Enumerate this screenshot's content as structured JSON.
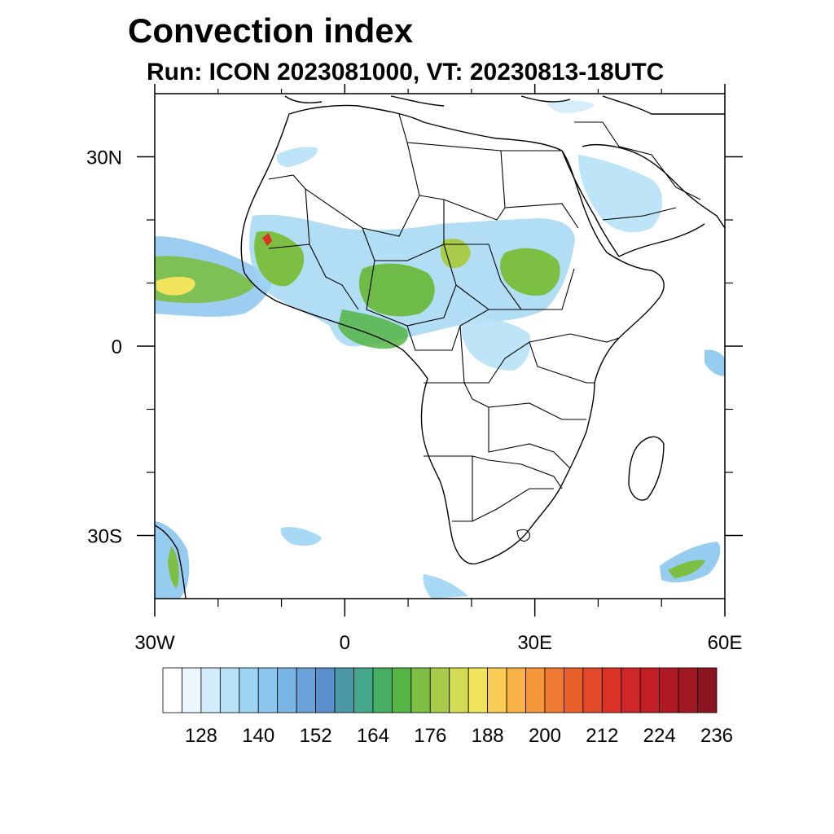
{
  "title": "Convection index",
  "subtitle": "Run: ICON 2023081000,  VT: 20230813-18UTC",
  "map": {
    "region": "Africa and surrounding oceans",
    "lon_range": [
      -30,
      60
    ],
    "lat_range": [
      -40,
      40
    ],
    "projection": "cylindrical equidistant",
    "x_ticks": [
      {
        "value": -30,
        "label": "30W"
      },
      {
        "value": 0,
        "label": "0"
      },
      {
        "value": 30,
        "label": "30E"
      },
      {
        "value": 60,
        "label": "60E"
      }
    ],
    "y_ticks": [
      {
        "value": 30,
        "label": "30N"
      },
      {
        "value": 0,
        "label": "0"
      },
      {
        "value": -30,
        "label": "30S"
      }
    ],
    "minor_x_ticks": [
      -20,
      -10,
      10,
      20,
      40,
      50
    ],
    "minor_y_ticks": [
      20,
      10,
      -10,
      -20
    ]
  },
  "colorbar": {
    "colors": [
      "#ffffff",
      "#eaf6fc",
      "#d2ecfa",
      "#b7e1f6",
      "#9dd4f3",
      "#8ac6ee",
      "#78b5e4",
      "#6aa3da",
      "#5990cc",
      "#4c98a8",
      "#45a88a",
      "#46ae62",
      "#55b544",
      "#7cbf43",
      "#a8cc49",
      "#d2dc52",
      "#f2e35c",
      "#f9cc55",
      "#f8b247",
      "#f4963a",
      "#ee7b31",
      "#e8612b",
      "#e24a2a",
      "#da3429",
      "#cf2628",
      "#c11e26",
      "#b01a24",
      "#9f1822",
      "#8b1520"
    ],
    "labels": [
      "128",
      "140",
      "152",
      "164",
      "176",
      "188",
      "200",
      "212",
      "224",
      "236"
    ],
    "label_boxes": [
      2,
      5,
      8,
      11,
      14,
      17,
      20,
      23,
      26,
      29
    ]
  }
}
